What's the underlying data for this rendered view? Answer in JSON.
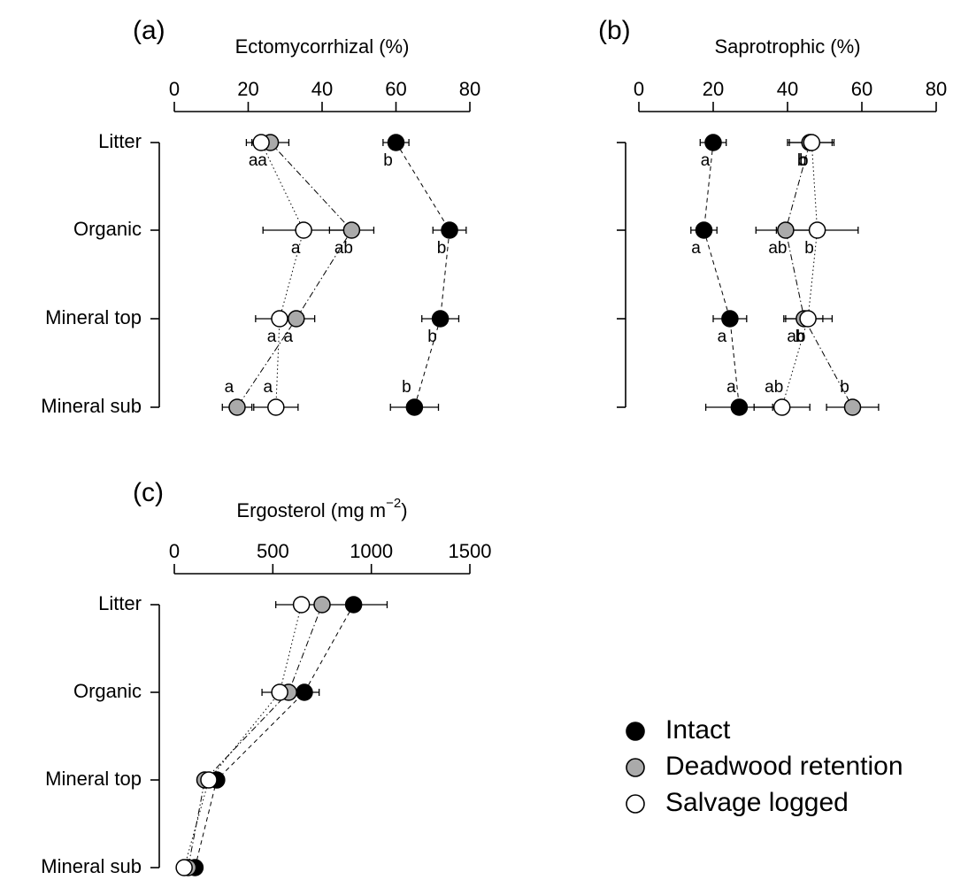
{
  "chart_data": [
    {
      "type": "scatter",
      "panel": "(a)",
      "xlabel": "Ectomycorrhizal (%)",
      "xlim": [
        0,
        80
      ],
      "xticks": [
        0,
        20,
        40,
        60,
        80
      ],
      "categories": [
        "Litter",
        "Organic",
        "Mineral top",
        "Mineral sub"
      ],
      "series": [
        {
          "name": "Intact",
          "color": "#000000",
          "line": "dashed",
          "values": [
            60,
            74.5,
            72,
            65
          ],
          "err": [
            3.5,
            4.5,
            5,
            6.5
          ],
          "sig": [
            "b",
            "b",
            "b",
            "b"
          ]
        },
        {
          "name": "Deadwood retention",
          "color": "#aaaaaa",
          "line": "dashdot",
          "values": [
            26,
            48,
            33,
            17
          ],
          "err": [
            5,
            6,
            5,
            4
          ],
          "sig": [
            "a",
            "ab",
            "a",
            "a"
          ]
        },
        {
          "name": "Salvage logged",
          "color": "#ffffff",
          "line": "dotted",
          "values": [
            23.5,
            35,
            28.5,
            27.5
          ],
          "err": [
            4,
            11,
            6.5,
            6
          ],
          "sig": [
            "a",
            "a",
            "a",
            "a"
          ]
        }
      ]
    },
    {
      "type": "scatter",
      "panel": "(b)",
      "xlabel": "Saprotrophic (%)",
      "xlim": [
        0,
        80
      ],
      "xticks": [
        0,
        20,
        40,
        60,
        80
      ],
      "categories": [
        "Litter",
        "Organic",
        "Mineral top",
        "Mineral sub"
      ],
      "series": [
        {
          "name": "Intact",
          "color": "#000000",
          "line": "dashed",
          "values": [
            20,
            17.5,
            24.5,
            27
          ],
          "err": [
            3.5,
            3.5,
            4.5,
            9
          ],
          "sig": [
            "a",
            "a",
            "a",
            "a"
          ]
        },
        {
          "name": "Deadwood retention",
          "color": "#aaaaaa",
          "line": "dashdot",
          "values": [
            46,
            39.5,
            44.5,
            57.5
          ],
          "err": [
            6,
            8,
            5,
            7
          ],
          "sig": [
            "b",
            "ab",
            "ab",
            "b"
          ]
        },
        {
          "name": "Salvage logged",
          "color": "#ffffff",
          "line": "dotted",
          "values": [
            46.5,
            48,
            45.5,
            38.5
          ],
          "err": [
            6,
            11,
            6.5,
            7.5
          ],
          "sig": [
            "b",
            "b",
            "b",
            "ab"
          ]
        }
      ]
    },
    {
      "type": "scatter",
      "panel": "(c)",
      "xlabel": "Ergosterol (mg m",
      "xlabel_sup": "−2",
      "xlabel_end": ")",
      "xlim": [
        0,
        1500
      ],
      "xticks": [
        0,
        500,
        1000,
        1500
      ],
      "categories": [
        "Litter",
        "Organic",
        "Mineral top",
        "Mineral sub"
      ],
      "series": [
        {
          "name": "Intact",
          "color": "#000000",
          "line": "dashed",
          "values": [
            910,
            660,
            215,
            105
          ],
          "err": [
            170,
            75,
            0,
            0
          ]
        },
        {
          "name": "Deadwood retention",
          "color": "#aaaaaa",
          "line": "dashdot",
          "values": [
            750,
            580,
            155,
            70
          ],
          "err": [
            0,
            0,
            0,
            0
          ]
        },
        {
          "name": "Salvage logged",
          "color": "#ffffff",
          "line": "dotted",
          "values": [
            645,
            535,
            175,
            50
          ],
          "err": [
            130,
            90,
            0,
            0
          ]
        }
      ]
    }
  ],
  "legend": {
    "position": "bottom-right",
    "items": [
      {
        "label": "Intact",
        "color": "#000000"
      },
      {
        "label": "Deadwood retention",
        "color": "#aaaaaa"
      },
      {
        "label": "Salvage logged",
        "color": "#ffffff"
      }
    ]
  }
}
